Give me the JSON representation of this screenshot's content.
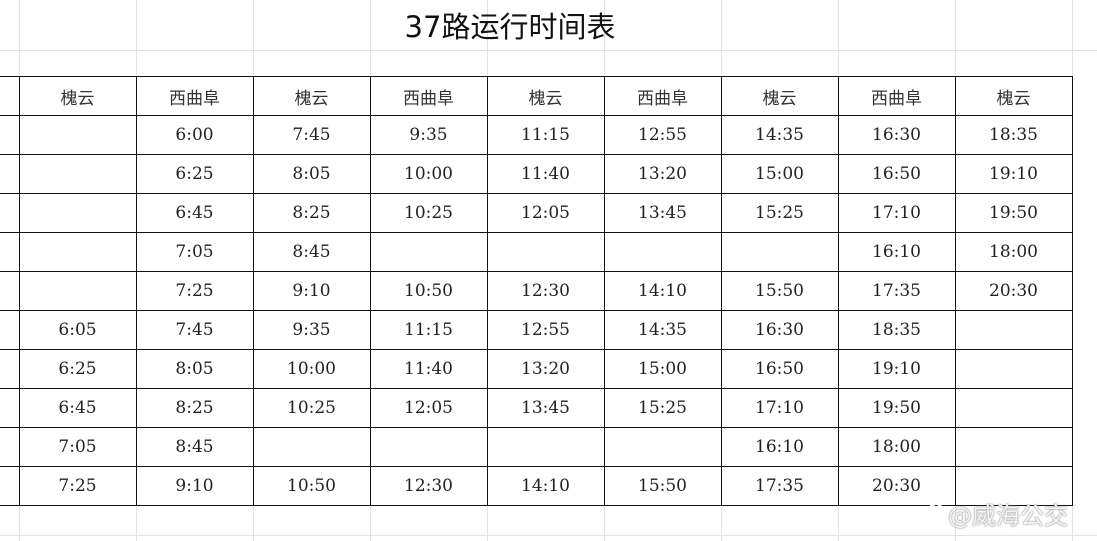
{
  "title": "37路运行时间表",
  "headers": [
    "",
    "槐云",
    "西曲阜",
    "槐云",
    "西曲阜",
    "槐云",
    "西曲阜",
    "槐云",
    "西曲阜",
    "槐云"
  ],
  "rows": [
    [
      "",
      "",
      "6:00",
      "7:45",
      "9:35",
      "11:15",
      "12:55",
      "14:35",
      "16:30",
      "18:35"
    ],
    [
      "",
      "",
      "6:25",
      "8:05",
      "10:00",
      "11:40",
      "13:20",
      "15:00",
      "16:50",
      "19:10"
    ],
    [
      "",
      "",
      "6:45",
      "8:25",
      "10:25",
      "12:05",
      "13:45",
      "15:25",
      "17:10",
      "19:50"
    ],
    [
      "",
      "",
      "7:05",
      "8:45",
      "",
      "",
      "",
      "",
      "16:10",
      "18:00"
    ],
    [
      "",
      "",
      "7:25",
      "9:10",
      "10:50",
      "12:30",
      "14:10",
      "15:50",
      "17:35",
      "20:30"
    ],
    [
      "",
      "6:05",
      "7:45",
      "9:35",
      "11:15",
      "12:55",
      "14:35",
      "16:30",
      "18:35",
      ""
    ],
    [
      "",
      "6:25",
      "8:05",
      "10:00",
      "11:40",
      "13:20",
      "15:00",
      "16:50",
      "19:10",
      ""
    ],
    [
      "",
      "6:45",
      "8:25",
      "10:25",
      "12:05",
      "13:45",
      "15:25",
      "17:10",
      "19:50",
      ""
    ],
    [
      "",
      "7:05",
      "8:45",
      "",
      "",
      "",
      "",
      "16:10",
      "18:00",
      ""
    ],
    [
      "",
      "7:25",
      "9:10",
      "10:50",
      "12:30",
      "14:10",
      "15:50",
      "17:35",
      "20:30",
      ""
    ]
  ],
  "watermark": {
    "text": "@威海公交",
    "icon": "weibo-logo-icon"
  }
}
